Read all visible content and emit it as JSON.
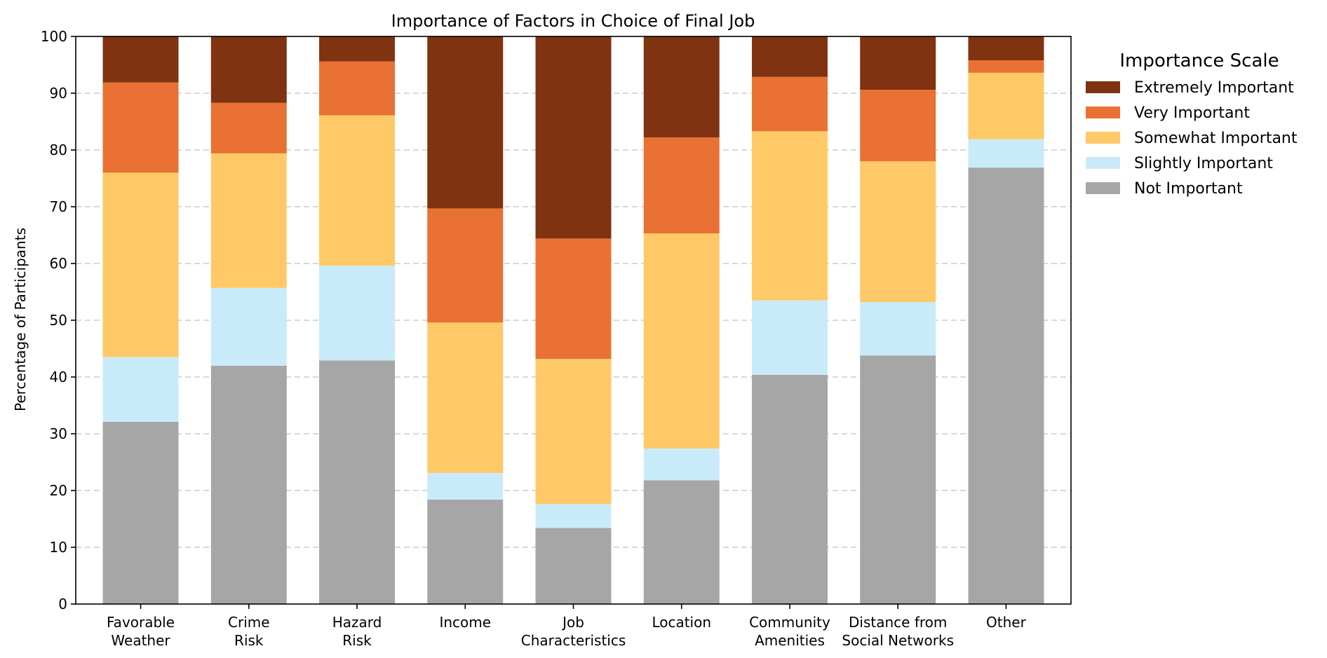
{
  "chart_data": {
    "type": "bar",
    "stacked": true,
    "title": "Importance of Factors in Choice of Final Job",
    "xlabel": "",
    "ylabel": "Percentage of Participants",
    "ylim": [
      0,
      100
    ],
    "yticks": [
      0,
      10,
      20,
      30,
      40,
      50,
      60,
      70,
      80,
      90,
      100
    ],
    "grid": "y-dashed",
    "categories": [
      [
        "Favorable",
        "Weather"
      ],
      [
        "Crime",
        "Risk"
      ],
      [
        "Hazard",
        "Risk"
      ],
      [
        "Income"
      ],
      [
        "Job",
        "Characteristics"
      ],
      [
        "Location"
      ],
      [
        "Community",
        "Amenities"
      ],
      [
        "Distance from",
        "Social Networks"
      ],
      [
        "Other"
      ]
    ],
    "series": [
      {
        "name": "Not Important",
        "color": "#a6a6a6",
        "values": [
          32.1,
          42.0,
          42.9,
          18.4,
          13.4,
          21.8,
          40.4,
          43.8,
          76.9
        ]
      },
      {
        "name": "Slightly Important",
        "color": "#c9ebf9",
        "values": [
          11.4,
          13.7,
          16.7,
          4.7,
          4.2,
          5.6,
          13.1,
          9.4,
          5.0
        ]
      },
      {
        "name": "Somewhat Important",
        "color": "#fec966",
        "values": [
          32.5,
          23.7,
          26.5,
          26.5,
          25.6,
          37.9,
          29.8,
          24.8,
          11.7
        ]
      },
      {
        "name": "Very Important",
        "color": "#e87133",
        "values": [
          15.9,
          8.9,
          9.5,
          20.1,
          21.2,
          16.9,
          9.6,
          12.6,
          2.2
        ]
      },
      {
        "name": "Extremely Important",
        "color": "#7f3310",
        "values": [
          8.1,
          11.7,
          4.4,
          30.3,
          35.6,
          17.8,
          7.1,
          9.4,
          4.2
        ]
      }
    ],
    "legend": {
      "title": "Importance Scale",
      "placement": "outside-right-top",
      "order": [
        "Extremely Important",
        "Very Important",
        "Somewhat Important",
        "Slightly Important",
        "Not Important"
      ]
    }
  }
}
